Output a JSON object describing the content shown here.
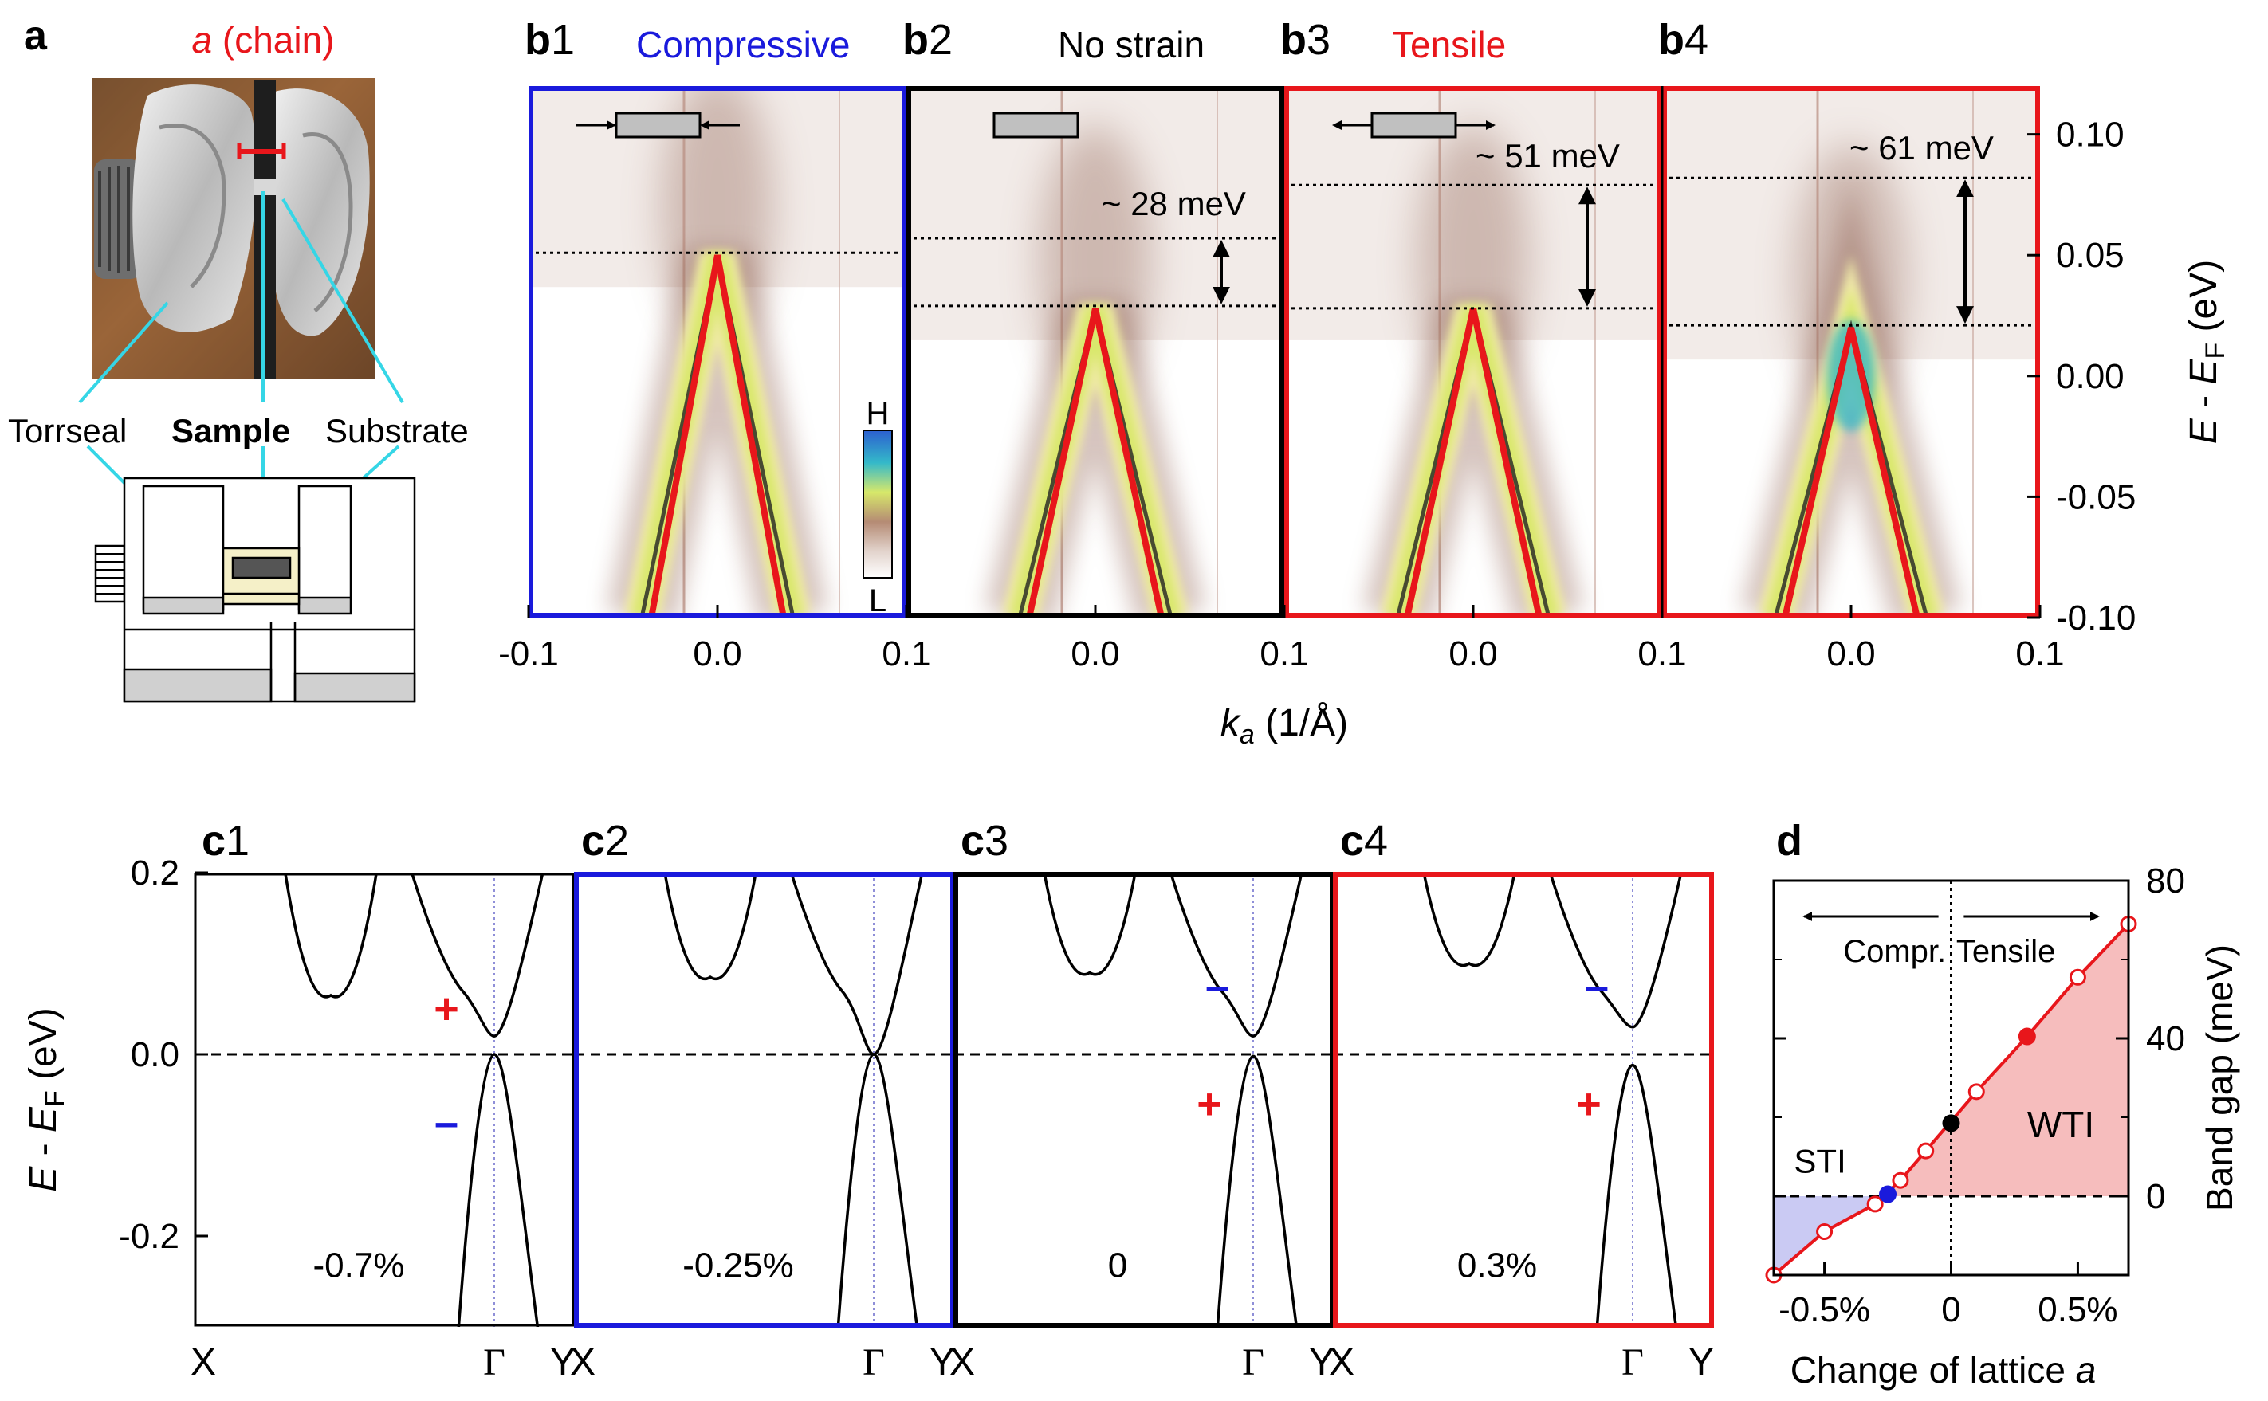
{
  "panel_a": {
    "letter": "a",
    "title": "a (chain)",
    "title_var": "a",
    "title_rest": " (chain)",
    "labels": {
      "torrseal": "Torrseal",
      "sample": "Sample",
      "substrate": "Substrate"
    }
  },
  "panel_b": {
    "subpanels": [
      {
        "id": "b1",
        "letter": "b",
        "num": "1",
        "title": "Compressive",
        "title_color": "#1a1adc",
        "frame_color": "#1a1adc",
        "dirac_energy": 0.05,
        "gap_label": "",
        "gap_lines": [
          0.051
        ]
      },
      {
        "id": "b2",
        "letter": "b",
        "num": "2",
        "title": "No strain",
        "title_color": "#000000",
        "frame_color": "#000000",
        "dirac_energy": 0.028,
        "gap_label": "~ 28 meV",
        "gap_lines": [
          0.057,
          0.029
        ]
      },
      {
        "id": "b3",
        "letter": "b",
        "num": "3",
        "title": "Tensile",
        "title_color": "#e8161b",
        "frame_color": "#e8161b",
        "dirac_energy": 0.028,
        "gap_label": "~ 51 meV",
        "gap_lines": [
          0.079,
          0.028
        ]
      },
      {
        "id": "b4",
        "letter": "b",
        "num": "4",
        "title": "",
        "title_color": "#000000",
        "frame_color": "#e8161b",
        "dirac_energy": 0.02,
        "gap_label": "~ 61 meV",
        "gap_lines": [
          0.082,
          0.021
        ]
      }
    ],
    "colorbar": {
      "high": "H",
      "low": "L"
    },
    "x_tick_labels": [
      "-0.1",
      "0.0",
      "0.1",
      "0.0",
      "0.1",
      "0.0",
      "0.1",
      "0.0",
      "0.1"
    ],
    "x_label_var": "k",
    "x_label_sub": "a",
    "x_label_unit": " (1/Å)",
    "y_ticks": [
      {
        "value": 0.1,
        "label": "0.10"
      },
      {
        "value": 0.05,
        "label": "0.05"
      },
      {
        "value": 0.0,
        "label": "0.00"
      },
      {
        "value": -0.05,
        "label": "-0.05"
      },
      {
        "value": -0.1,
        "label": "-0.10"
      }
    ],
    "y_label_E": "E",
    "y_label_mid": " - ",
    "y_label_EF": "E",
    "y_label_F": "F",
    "y_label_unit": " (eV)",
    "ylim": [
      -0.1,
      0.12
    ]
  },
  "panel_c": {
    "subpanels": [
      {
        "id": "c1",
        "letter": "c",
        "num": "1",
        "strain": "-0.7%",
        "frame_color": "#000000",
        "upper_sign": "+",
        "upper_color": "#e8161b",
        "lower_sign": "–",
        "lower_color": "#1a1adc",
        "cb_min": 0.02,
        "vb_max": 0.0,
        "pocket_min": 0.065
      },
      {
        "id": "c2",
        "letter": "c",
        "num": "2",
        "strain": "-0.25%",
        "frame_color": "#1a1adc",
        "upper_sign": "",
        "upper_color": "#000000",
        "lower_sign": "",
        "lower_color": "#000000",
        "cb_min": 0.0,
        "vb_max": 0.0,
        "pocket_min": 0.085
      },
      {
        "id": "c3",
        "letter": "c",
        "num": "3",
        "strain": "0",
        "frame_color": "#000000",
        "upper_sign": "–",
        "upper_color": "#1a1adc",
        "lower_sign": "+",
        "lower_color": "#e8161b",
        "cb_min": 0.02,
        "vb_max": -0.002,
        "pocket_min": 0.09
      },
      {
        "id": "c4",
        "letter": "c",
        "num": "4",
        "strain": "0.3%",
        "frame_color": "#e8161b",
        "upper_sign": "–",
        "upper_color": "#1a1adc",
        "lower_sign": "+",
        "lower_color": "#e8161b",
        "cb_min": 0.03,
        "vb_max": -0.012,
        "pocket_min": 0.1
      }
    ],
    "y_ticks": [
      {
        "value": 0.2,
        "label": "0.2"
      },
      {
        "value": 0.0,
        "label": "0.0"
      },
      {
        "value": -0.2,
        "label": "-0.2"
      }
    ],
    "ylim": [
      -0.3,
      0.2
    ],
    "k_labels": [
      "X",
      "Γ",
      "Y",
      "X",
      "Γ",
      "Y",
      "X",
      "Γ",
      "Y",
      "X",
      "Γ",
      "Y"
    ],
    "y_label_E": "E",
    "y_label_mid": " - ",
    "y_label_EF": "E",
    "y_label_F": "F",
    "y_label_unit": " (eV)"
  },
  "chart_data": {
    "type": "line",
    "letter": "d",
    "x_tick_labels": [
      "-0.5%",
      "0",
      "0.5%"
    ],
    "x_label_text": "Change of lattice ",
    "x_label_var": "a",
    "ylabel": "Band gap (meV)",
    "xlim": [
      -0.7,
      0.7
    ],
    "ylim": [
      -20,
      80
    ],
    "y_ticks": [
      {
        "value": 80,
        "label": "80"
      },
      {
        "value": 40,
        "label": "40"
      },
      {
        "value": 0,
        "label": "0"
      }
    ],
    "x_ticks": [
      -0.5,
      0,
      0.5
    ],
    "series": [
      {
        "values": [
          [
            -0.7,
            -20
          ],
          [
            -0.5,
            -9
          ],
          [
            -0.3,
            -2
          ],
          [
            -0.2,
            4
          ],
          [
            -0.1,
            11.5
          ],
          [
            0.1,
            26.5
          ],
          [
            0.3,
            40.5
          ],
          [
            0.5,
            55.5
          ],
          [
            0.7,
            69
          ]
        ]
      }
    ],
    "highlights": [
      {
        "x": -0.25,
        "y": 0.5,
        "color": "#1a1adc"
      },
      {
        "x": 0.0,
        "y": 18.5,
        "color": "#000000"
      },
      {
        "x": 0.3,
        "y": 40.5,
        "color": "#e8161b"
      }
    ],
    "annotations": {
      "compr": "Compr.",
      "tensile": "Tensile",
      "sti": "STI",
      "wti": "WTI"
    }
  }
}
